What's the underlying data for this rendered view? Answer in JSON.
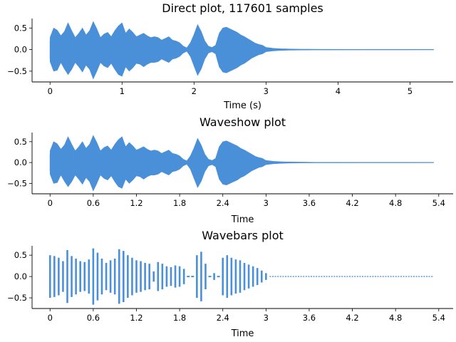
{
  "figure": {
    "background": "#ffffff"
  },
  "chart_data": [
    {
      "type": "line",
      "title": "Direct plot, 117601 samples",
      "xlabel": "Time (s)",
      "ylabel": "",
      "xlim": [
        -0.25,
        5.6
      ],
      "ylim": [
        -0.75,
        0.72
      ],
      "xticks": [
        0,
        1,
        2,
        3,
        4,
        5
      ],
      "xticklabels": [
        "0",
        "1",
        "2",
        "3",
        "4",
        "5"
      ],
      "yticks": [
        0.5,
        0.0,
        -0.5
      ],
      "yticklabels": [
        "0.5",
        "0.0",
        "−0.5"
      ],
      "color": "#4a90d9",
      "series": [
        {
          "x": [
            0,
            0.05,
            0.1,
            0.15,
            0.2,
            0.25,
            0.3,
            0.35,
            0.4,
            0.45,
            0.5,
            0.55,
            0.6,
            0.65,
            0.7,
            0.75,
            0.8,
            0.85,
            0.9,
            0.95,
            1.0,
            1.05,
            1.1,
            1.15,
            1.2,
            1.25,
            1.3,
            1.35,
            1.4,
            1.45,
            1.5,
            1.55,
            1.6,
            1.65,
            1.7,
            1.75,
            1.8,
            1.85,
            1.9,
            1.95,
            2.0,
            2.05,
            2.1,
            2.15,
            2.2,
            2.25,
            2.3,
            2.35,
            2.4,
            2.45,
            2.5,
            2.55,
            2.6,
            2.65,
            2.7,
            2.75,
            2.8,
            2.85,
            2.9,
            2.95,
            3.0,
            3.1,
            3.2,
            3.3,
            3.4,
            3.5,
            3.6,
            3.7,
            4.0,
            4.5,
            5.0,
            5.33
          ],
          "upper": [
            0.28,
            0.5,
            0.45,
            0.32,
            0.42,
            0.62,
            0.44,
            0.28,
            0.38,
            0.5,
            0.34,
            0.44,
            0.65,
            0.48,
            0.28,
            0.36,
            0.4,
            0.3,
            0.44,
            0.55,
            0.62,
            0.38,
            0.48,
            0.4,
            0.3,
            0.34,
            0.38,
            0.32,
            0.28,
            0.3,
            0.28,
            0.22,
            0.26,
            0.3,
            0.22,
            0.2,
            0.16,
            0.08,
            0.04,
            0.16,
            0.35,
            0.58,
            0.42,
            0.2,
            0.08,
            0.05,
            0.1,
            0.38,
            0.5,
            0.52,
            0.48,
            0.44,
            0.4,
            0.34,
            0.3,
            0.25,
            0.2,
            0.15,
            0.12,
            0.1,
            0.05,
            0.03,
            0.02,
            0.015,
            0.012,
            0.01,
            0.008,
            0.006,
            0.005,
            0.004,
            0.003,
            0.002
          ],
          "lower": [
            -0.28,
            -0.5,
            -0.48,
            -0.3,
            -0.45,
            -0.58,
            -0.46,
            -0.3,
            -0.4,
            -0.52,
            -0.36,
            -0.46,
            -0.68,
            -0.5,
            -0.3,
            -0.38,
            -0.42,
            -0.32,
            -0.46,
            -0.58,
            -0.62,
            -0.4,
            -0.5,
            -0.42,
            -0.32,
            -0.34,
            -0.4,
            -0.34,
            -0.3,
            -0.3,
            -0.28,
            -0.22,
            -0.26,
            -0.3,
            -0.22,
            -0.2,
            -0.16,
            -0.08,
            -0.04,
            -0.16,
            -0.38,
            -0.6,
            -0.45,
            -0.22,
            -0.08,
            -0.05,
            -0.1,
            -0.4,
            -0.52,
            -0.54,
            -0.5,
            -0.46,
            -0.42,
            -0.36,
            -0.32,
            -0.26,
            -0.2,
            -0.16,
            -0.12,
            -0.1,
            -0.05,
            -0.03,
            -0.02,
            -0.015,
            -0.012,
            -0.01,
            -0.008,
            -0.006,
            -0.005,
            -0.004,
            -0.003,
            -0.002
          ]
        }
      ]
    },
    {
      "type": "line",
      "title": "Waveshow plot",
      "xlabel": "Time",
      "ylabel": "",
      "xlim": [
        -0.25,
        5.6
      ],
      "ylim": [
        -0.75,
        0.72
      ],
      "xticks": [
        0,
        0.6,
        1.2,
        1.8,
        2.4,
        3,
        3.6,
        4.2,
        4.8,
        5.4
      ],
      "xticklabels": [
        "0",
        "0.6",
        "1.2",
        "1.8",
        "2.4",
        "3",
        "3.6",
        "4.2",
        "4.8",
        "5.4"
      ],
      "yticks": [
        0.5,
        0.0,
        -0.5
      ],
      "yticklabels": [
        "0.5",
        "0.0",
        "−0.5"
      ],
      "color": "#4a90d9",
      "series": [
        {
          "x": [
            0,
            0.05,
            0.1,
            0.15,
            0.2,
            0.25,
            0.3,
            0.35,
            0.4,
            0.45,
            0.5,
            0.55,
            0.6,
            0.65,
            0.7,
            0.75,
            0.8,
            0.85,
            0.9,
            0.95,
            1.0,
            1.05,
            1.1,
            1.15,
            1.2,
            1.25,
            1.3,
            1.35,
            1.4,
            1.45,
            1.5,
            1.55,
            1.6,
            1.65,
            1.7,
            1.75,
            1.8,
            1.85,
            1.9,
            1.95,
            2.0,
            2.05,
            2.1,
            2.15,
            2.2,
            2.25,
            2.3,
            2.35,
            2.4,
            2.45,
            2.5,
            2.55,
            2.6,
            2.65,
            2.7,
            2.75,
            2.8,
            2.85,
            2.9,
            2.95,
            3.0,
            3.1,
            3.2,
            3.3,
            3.4,
            3.5,
            3.6,
            3.7,
            4.0,
            4.5,
            5.0,
            5.33
          ],
          "upper": [
            0.28,
            0.5,
            0.45,
            0.32,
            0.42,
            0.62,
            0.44,
            0.28,
            0.38,
            0.5,
            0.34,
            0.44,
            0.65,
            0.48,
            0.28,
            0.36,
            0.4,
            0.3,
            0.44,
            0.55,
            0.62,
            0.38,
            0.48,
            0.4,
            0.3,
            0.34,
            0.38,
            0.32,
            0.28,
            0.3,
            0.28,
            0.22,
            0.26,
            0.3,
            0.22,
            0.2,
            0.16,
            0.08,
            0.04,
            0.16,
            0.35,
            0.58,
            0.42,
            0.2,
            0.08,
            0.05,
            0.1,
            0.38,
            0.5,
            0.52,
            0.48,
            0.44,
            0.4,
            0.34,
            0.3,
            0.25,
            0.2,
            0.15,
            0.12,
            0.1,
            0.05,
            0.03,
            0.02,
            0.015,
            0.012,
            0.01,
            0.008,
            0.006,
            0.005,
            0.004,
            0.003,
            0.002
          ],
          "lower": [
            -0.28,
            -0.5,
            -0.48,
            -0.3,
            -0.45,
            -0.58,
            -0.46,
            -0.3,
            -0.4,
            -0.52,
            -0.36,
            -0.46,
            -0.68,
            -0.5,
            -0.3,
            -0.38,
            -0.42,
            -0.32,
            -0.46,
            -0.58,
            -0.62,
            -0.4,
            -0.5,
            -0.42,
            -0.32,
            -0.34,
            -0.4,
            -0.34,
            -0.3,
            -0.3,
            -0.28,
            -0.22,
            -0.26,
            -0.3,
            -0.22,
            -0.2,
            -0.16,
            -0.08,
            -0.04,
            -0.16,
            -0.38,
            -0.6,
            -0.45,
            -0.22,
            -0.08,
            -0.05,
            -0.1,
            -0.4,
            -0.52,
            -0.54,
            -0.5,
            -0.46,
            -0.42,
            -0.36,
            -0.32,
            -0.26,
            -0.2,
            -0.16,
            -0.12,
            -0.1,
            -0.05,
            -0.03,
            -0.02,
            -0.015,
            -0.012,
            -0.01,
            -0.008,
            -0.006,
            -0.005,
            -0.004,
            -0.003,
            -0.002
          ]
        }
      ]
    },
    {
      "type": "bar",
      "title": "Wavebars plot",
      "xlabel": "Time",
      "ylabel": "",
      "xlim": [
        -0.25,
        5.6
      ],
      "ylim": [
        -0.75,
        0.72
      ],
      "xticks": [
        0,
        0.6,
        1.2,
        1.8,
        2.4,
        3,
        3.6,
        4.2,
        4.8,
        5.4
      ],
      "xticklabels": [
        "0",
        "0.6",
        "1.2",
        "1.8",
        "2.4",
        "3",
        "3.6",
        "4.2",
        "4.8",
        "5.4"
      ],
      "yticks": [
        0.5,
        0.0,
        -0.5
      ],
      "yticklabels": [
        "0.5",
        "0.0",
        "−0.5"
      ],
      "color": "#4a90d9",
      "bars": {
        "x": [
          0.0,
          0.06,
          0.12,
          0.18,
          0.24,
          0.3,
          0.36,
          0.42,
          0.48,
          0.54,
          0.6,
          0.66,
          0.72,
          0.78,
          0.84,
          0.9,
          0.96,
          1.02,
          1.08,
          1.14,
          1.2,
          1.26,
          1.32,
          1.38,
          1.44,
          1.5,
          1.56,
          1.62,
          1.68,
          1.74,
          1.8,
          1.86,
          1.92,
          1.98,
          2.04,
          2.1,
          2.16,
          2.22,
          2.28,
          2.34,
          2.4,
          2.46,
          2.52,
          2.58,
          2.64,
          2.7,
          2.76,
          2.82,
          2.88,
          2.94,
          3.0
        ],
        "amp": [
          0.5,
          0.48,
          0.44,
          0.36,
          0.62,
          0.48,
          0.42,
          0.36,
          0.34,
          0.4,
          0.66,
          0.56,
          0.42,
          0.32,
          0.38,
          0.42,
          0.64,
          0.6,
          0.5,
          0.44,
          0.38,
          0.36,
          0.32,
          0.3,
          0.12,
          0.34,
          0.3,
          0.24,
          0.22,
          0.26,
          0.24,
          0.18,
          0.04,
          0.02,
          0.5,
          0.58,
          0.3,
          0.04,
          0.08,
          0.02,
          0.44,
          0.5,
          0.44,
          0.4,
          0.38,
          0.32,
          0.28,
          0.24,
          0.2,
          0.14,
          0.08
        ],
        "tail_start": 3.05,
        "tail_end": 5.33
      }
    }
  ]
}
